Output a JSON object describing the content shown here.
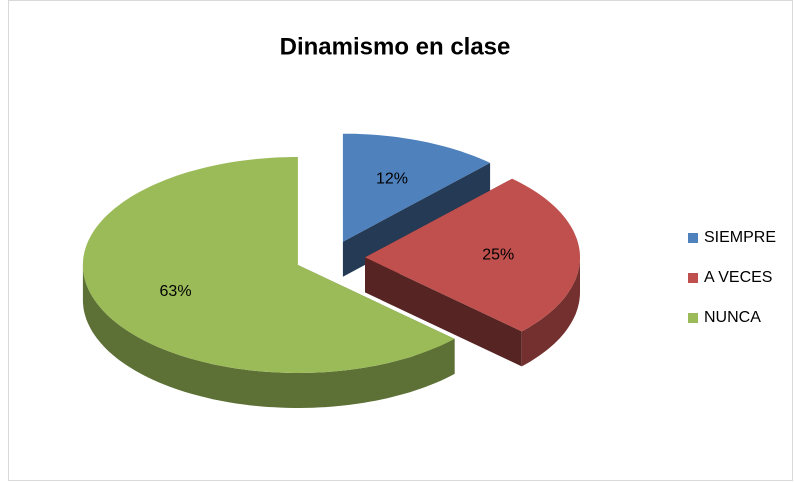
{
  "chart_data": {
    "type": "pie3d",
    "title": "Dinamismo en clase",
    "categories": [
      "SIEMPRE",
      "A VECES",
      "NUNCA"
    ],
    "values": [
      12,
      25,
      63
    ],
    "value_labels": [
      "12%",
      "25%",
      "63%"
    ],
    "colors": [
      "#4f81bd",
      "#c0504d",
      "#9bbb59"
    ],
    "legend": "right"
  }
}
